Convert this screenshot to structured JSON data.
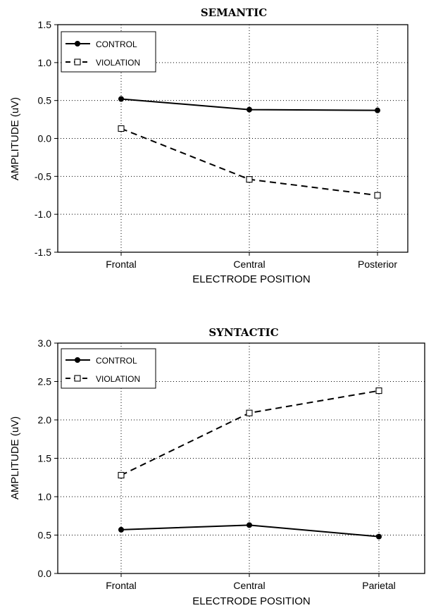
{
  "chart_data": [
    {
      "type": "line",
      "title": "SEMANTIC",
      "xlabel": "ELECTRODE POSITION",
      "ylabel": "AMPLITUDE (uV)",
      "categories": [
        "Frontal",
        "Central",
        "Posterior"
      ],
      "ylim": [
        -1.5,
        1.5
      ],
      "yticks": [
        "-1.5",
        "-1.0",
        "-0.5",
        "0.0",
        "0.5",
        "1.0",
        "1.5"
      ],
      "grid": true,
      "legend_position": "top-left",
      "series": [
        {
          "name": "CONTROL",
          "values": [
            0.52,
            0.38,
            0.37
          ],
          "style": "solid",
          "marker": "filled-circle",
          "color": "#000000"
        },
        {
          "name": "VIOLATION",
          "values": [
            0.13,
            -0.54,
            -0.75
          ],
          "style": "dashed",
          "marker": "open-square",
          "color": "#000000"
        }
      ]
    },
    {
      "type": "line",
      "title": "SYNTACTIC",
      "xlabel": "ELECTRODE POSITION",
      "ylabel": "AMPLITUDE (uV)",
      "categories": [
        "Frontal",
        "Central",
        "Parietal"
      ],
      "ylim": [
        0.0,
        3.0
      ],
      "yticks": [
        "0.0",
        "0.5",
        "1.0",
        "1.5",
        "2.0",
        "2.5",
        "3.0"
      ],
      "grid": true,
      "legend_position": "top-left",
      "series": [
        {
          "name": "CONTROL",
          "values": [
            0.57,
            0.63,
            0.48
          ],
          "style": "solid",
          "marker": "filled-circle",
          "color": "#000000"
        },
        {
          "name": "VIOLATION",
          "values": [
            1.28,
            2.09,
            2.38
          ],
          "style": "dashed",
          "marker": "open-square",
          "color": "#000000"
        }
      ]
    }
  ]
}
